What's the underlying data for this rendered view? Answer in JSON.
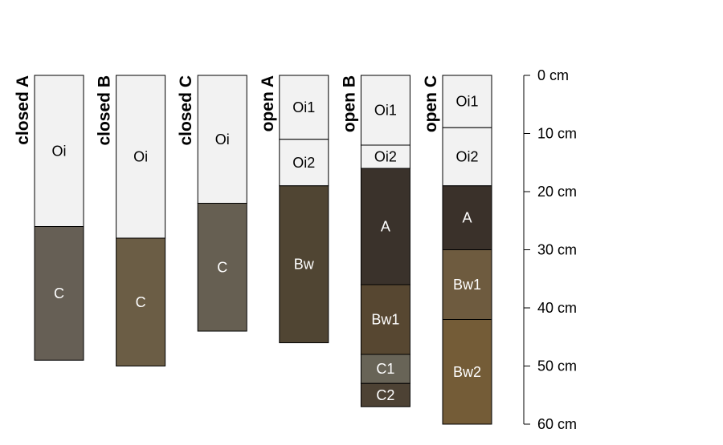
{
  "chart_data": {
    "type": "soil-profile-sketch",
    "depth_axis": {
      "unit": "cm",
      "range": [
        0,
        60
      ],
      "ticks": [
        0,
        10,
        20,
        30,
        40,
        50,
        60
      ],
      "tick_labels": [
        "0 cm",
        "10 cm",
        "20 cm",
        "30 cm",
        "40 cm",
        "50 cm",
        "60 cm"
      ]
    },
    "profiles": [
      {
        "id": "closedA",
        "label": "closed A",
        "horizons": [
          {
            "name": "Oi",
            "top": 0,
            "bottom": 26,
            "color": "#F2F2F2"
          },
          {
            "name": "C",
            "top": 26,
            "bottom": 49,
            "color": "#665F55"
          }
        ]
      },
      {
        "id": "closedB",
        "label": "closed B",
        "horizons": [
          {
            "name": "Oi",
            "top": 0,
            "bottom": 28,
            "color": "#F2F2F2"
          },
          {
            "name": "C",
            "top": 28,
            "bottom": 50,
            "color": "#6B5D45"
          }
        ]
      },
      {
        "id": "closedC",
        "label": "closed C",
        "horizons": [
          {
            "name": "Oi",
            "top": 0,
            "bottom": 22,
            "color": "#F2F2F2"
          },
          {
            "name": "C",
            "top": 22,
            "bottom": 44,
            "color": "#665F52"
          }
        ]
      },
      {
        "id": "openA",
        "label": "open A",
        "horizons": [
          {
            "name": "Oi1",
            "top": 0,
            "bottom": 11,
            "color": "#F2F2F2"
          },
          {
            "name": "Oi2",
            "top": 11,
            "bottom": 19,
            "color": "#F2F2F2"
          },
          {
            "name": "Bw",
            "top": 19,
            "bottom": 46,
            "color": "#504533"
          }
        ]
      },
      {
        "id": "openB",
        "label": "open B",
        "horizons": [
          {
            "name": "Oi1",
            "top": 0,
            "bottom": 12,
            "color": "#F2F2F2"
          },
          {
            "name": "Oi2",
            "top": 12,
            "bottom": 16,
            "color": "#F2F2F2"
          },
          {
            "name": "A",
            "top": 16,
            "bottom": 36,
            "color": "#3A322B"
          },
          {
            "name": "Bw1",
            "top": 36,
            "bottom": 48,
            "color": "#574731"
          },
          {
            "name": "C1",
            "top": 48,
            "bottom": 53,
            "color": "#686457"
          },
          {
            "name": "C2",
            "top": 53,
            "bottom": 57,
            "color": "#4D4234"
          }
        ]
      },
      {
        "id": "openC",
        "label": "open C",
        "horizons": [
          {
            "name": "Oi1",
            "top": 0,
            "bottom": 9,
            "color": "#F2F2F2"
          },
          {
            "name": "Oi2",
            "top": 9,
            "bottom": 19,
            "color": "#F2F2F2"
          },
          {
            "name": "A",
            "top": 19,
            "bottom": 30,
            "color": "#3A312A"
          },
          {
            "name": "Bw1",
            "top": 30,
            "bottom": 42,
            "color": "#6E5B3F"
          },
          {
            "name": "Bw2",
            "top": 42,
            "bottom": 60,
            "color": "#745C37"
          }
        ]
      }
    ]
  }
}
